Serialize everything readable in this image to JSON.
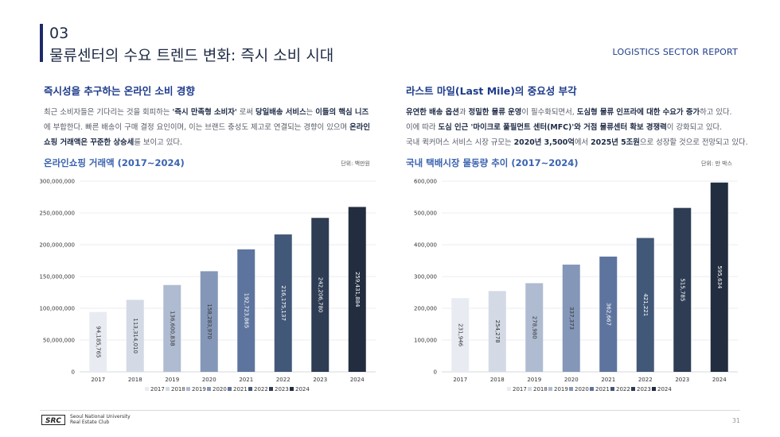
{
  "header": {
    "section_number": "03",
    "section_title": "물류센터의 수요 트렌드 변화: 즉시 소비 시대",
    "report_label": "LOGISTICS SECTOR REPORT"
  },
  "left": {
    "heading": "즉시성을 추구하는 온라인 소비 경향",
    "lines": [
      [
        {
          "t": "최근 소비자들은 기다리는 것을 회피하는 "
        },
        {
          "t": "'즉시 만족형 소비자'",
          "b": true
        },
        {
          "t": " 로써 "
        },
        {
          "t": "당일배송 서비스",
          "b": true
        },
        {
          "t": "는 "
        },
        {
          "t": "이들의 핵심 니즈",
          "b": true
        }
      ],
      [
        {
          "t": "에 부합한다. 빠른 배송이 구매 결정 요인이며, 이는 브랜드 충성도 제고로 연결되는 경향이 있으며 "
        },
        {
          "t": "온라인",
          "b": true
        }
      ],
      [
        {
          "t": "쇼핑 거래액은 꾸준한 상승세",
          "b": true
        },
        {
          "t": "를 보이고 있다."
        }
      ]
    ],
    "chart_title": "온라인쇼핑 거래액 (2017~2024)",
    "unit": "단위: 백만원"
  },
  "right": {
    "heading": "라스트 마일(Last Mile)의 중요성 부각",
    "lines": [
      [
        {
          "t": "유연한 배송 옵션",
          "b": true
        },
        {
          "t": "과 "
        },
        {
          "t": "정밀한 물류 운영",
          "b": true
        },
        {
          "t": "이 필수화되면서, "
        },
        {
          "t": "도심형 물류 인프라에 대한 수요가 증가",
          "b": true
        },
        {
          "t": "하고 있다."
        }
      ],
      [
        {
          "t": "이에 따라 "
        },
        {
          "t": "도심 인근 '마이크로 풀필먼트 센터(MFC)'와 거점 물류센터 확보 경쟁력",
          "b": true
        },
        {
          "t": "이 강화되고 있다."
        }
      ],
      [
        {
          "t": "국내 퀵커머스 서비스 시장 규모는 "
        },
        {
          "t": "2020년 3,500억",
          "b": true
        },
        {
          "t": "에서 "
        },
        {
          "t": "2025년 5조원",
          "b": true
        },
        {
          "t": "으로 성장할 것으로 전망되고 있다."
        }
      ]
    ],
    "chart_title": "국내 택배시장 물동량 추이 (2017~2024)",
    "unit": "단위: 만 박스"
  },
  "colors": [
    "#e8ecf2",
    "#d3dae5",
    "#aebbd1",
    "#8497b8",
    "#5d749e",
    "#425878",
    "#2e3c54",
    "#222d40"
  ],
  "chart_data": [
    {
      "type": "bar",
      "title": "온라인쇼핑 거래액 (2017~2024)",
      "categories": [
        "2017",
        "2018",
        "2019",
        "2020",
        "2021",
        "2022",
        "2023",
        "2024"
      ],
      "values": [
        94185765,
        113314010,
        136600838,
        158283970,
        192723865,
        216175137,
        242206780,
        259431884
      ],
      "value_labels": [
        "94,185,765",
        "113,314,010",
        "136,600,838",
        "158,283,970",
        "192,723,865",
        "216,175,137",
        "242,206,780",
        "259,431,884"
      ],
      "yticks": [
        0,
        50000000,
        100000000,
        150000000,
        200000000,
        250000000,
        300000000
      ],
      "ytick_labels": [
        "0",
        "50,000,000",
        "100,000,000",
        "150,000,000",
        "200,000,000",
        "250,000,000",
        "300,000,000"
      ],
      "ylim": [
        0,
        300000000
      ],
      "legend": [
        "2017",
        "2018",
        "2019",
        "2020",
        "2021",
        "2022",
        "2023",
        "2024"
      ],
      "legend_position": "bottom",
      "grid": true
    },
    {
      "type": "bar",
      "title": "국내 택배시장 물동량 추이 (2017~2024)",
      "categories": [
        "2017",
        "2018",
        "2019",
        "2020",
        "2021",
        "2022",
        "2023",
        "2024"
      ],
      "values": [
        231946,
        254278,
        278980,
        337373,
        362667,
        421221,
        515785,
        595634
      ],
      "value_labels": [
        "231,946",
        "254,278",
        "278,980",
        "337,373",
        "362,667",
        "421,221",
        "515,785",
        "595,634"
      ],
      "yticks": [
        0,
        100000,
        200000,
        300000,
        400000,
        500000,
        600000
      ],
      "ytick_labels": [
        "0",
        "100,000",
        "200,000",
        "300,000",
        "400,000",
        "500,000",
        "600,000"
      ],
      "ylim": [
        0,
        600000
      ],
      "legend": [
        "2017",
        "2018",
        "2019",
        "2020",
        "2021",
        "2022",
        "2023",
        "2024"
      ],
      "legend_position": "bottom",
      "grid": true
    }
  ],
  "footer": {
    "logo_text": "SRC",
    "club_line1": "Seoul National University",
    "club_line2": "Real Estate Club",
    "page_number": "31"
  }
}
